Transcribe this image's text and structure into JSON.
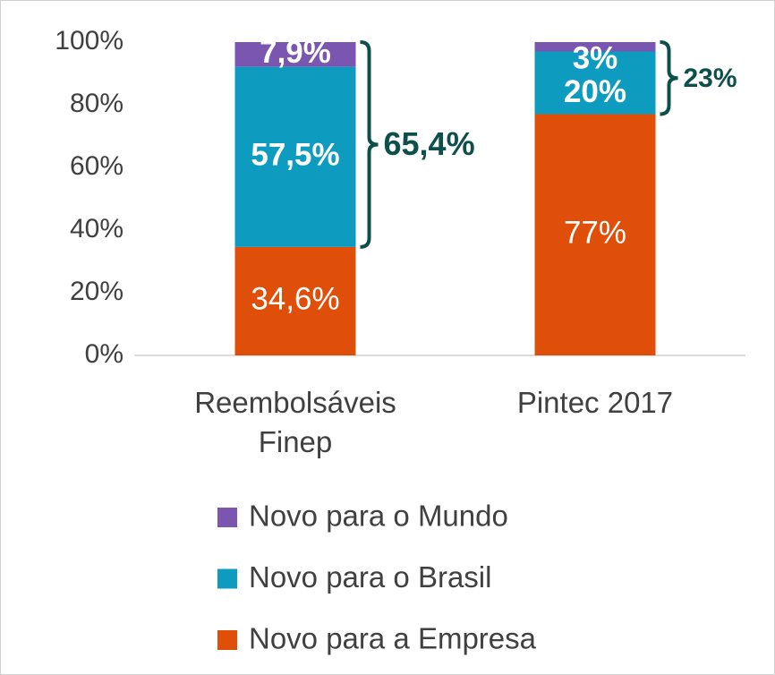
{
  "chart_data": {
    "type": "stacked_bar",
    "categories": [
      "Reembolsáveis Finep",
      "Pintec 2017"
    ],
    "series": [
      {
        "name": "Novo para a Empresa",
        "color": "#e04f0a",
        "values": [
          34.6,
          77
        ],
        "value_labels": [
          "34,6%",
          "77%"
        ]
      },
      {
        "name": "Novo para o Brasil",
        "color": "#0e9bc0",
        "values": [
          57.5,
          20
        ],
        "value_labels": [
          "57,5%",
          "20%"
        ]
      },
      {
        "name": "Novo para o Mundo",
        "color": "#7a56b0",
        "values": [
          7.9,
          3
        ],
        "value_labels": [
          "7,9%",
          "3%"
        ]
      }
    ],
    "annotations": [
      "65,4%",
      "23%"
    ],
    "ylim": [
      0,
      100
    ],
    "yticks": [
      {
        "value": 0,
        "label": "0%"
      },
      {
        "value": 20,
        "label": "20%"
      },
      {
        "value": 40,
        "label": "40%"
      },
      {
        "value": 60,
        "label": "60%"
      },
      {
        "value": 80,
        "label": "80%"
      },
      {
        "value": 100,
        "label": "100%"
      }
    ],
    "legend": "bottom"
  }
}
